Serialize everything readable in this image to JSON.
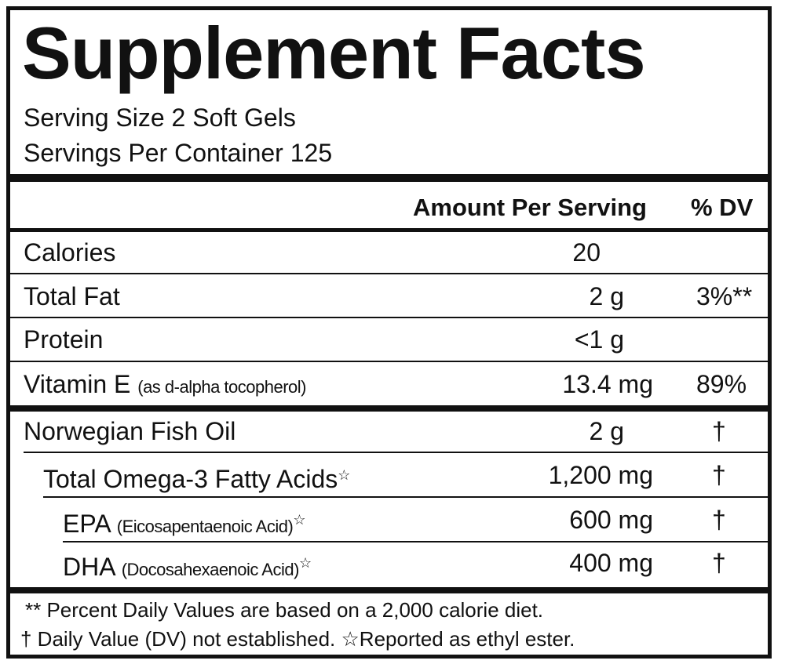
{
  "header": {
    "title": "Supplement Facts",
    "serving_size": "Serving Size 2 Soft Gels",
    "servings_per_container": "Servings Per Container 125"
  },
  "table": {
    "column_headers": [
      "Amount Per Serving",
      "% DV"
    ],
    "rows": [
      {
        "name": "Calories",
        "amount": "20"
      },
      {
        "name": "Total Fat",
        "amount": "2 g",
        "dv": "3%**"
      },
      {
        "name": "Protein",
        "amount": "<1 g"
      },
      {
        "name": "Vitamin E",
        "note": "(as d-alpha tocopherol)",
        "amount": "13.4 mg",
        "dv": "89%"
      },
      {
        "name": "Norwegian Fish Oil",
        "amount": "2 g",
        "dv": "†"
      },
      {
        "name": "Total Omega-3 Fatty Acids",
        "marker": "☆",
        "amount": "1,200 mg",
        "dv": "†"
      },
      {
        "name": "EPA",
        "note": "(Eicosapentaenoic Acid)",
        "marker": "☆",
        "amount": "600 mg",
        "dv": "†"
      },
      {
        "name": "DHA",
        "note": "(Docosahexaenoic Acid)",
        "marker": "☆",
        "amount": "400 mg",
        "dv": "†"
      }
    ]
  },
  "footnotes": [
    "** Percent Daily Values are based on a 2,000 calorie diet.",
    "† Daily Value (DV) not established.  ☆Reported as ethyl ester."
  ]
}
